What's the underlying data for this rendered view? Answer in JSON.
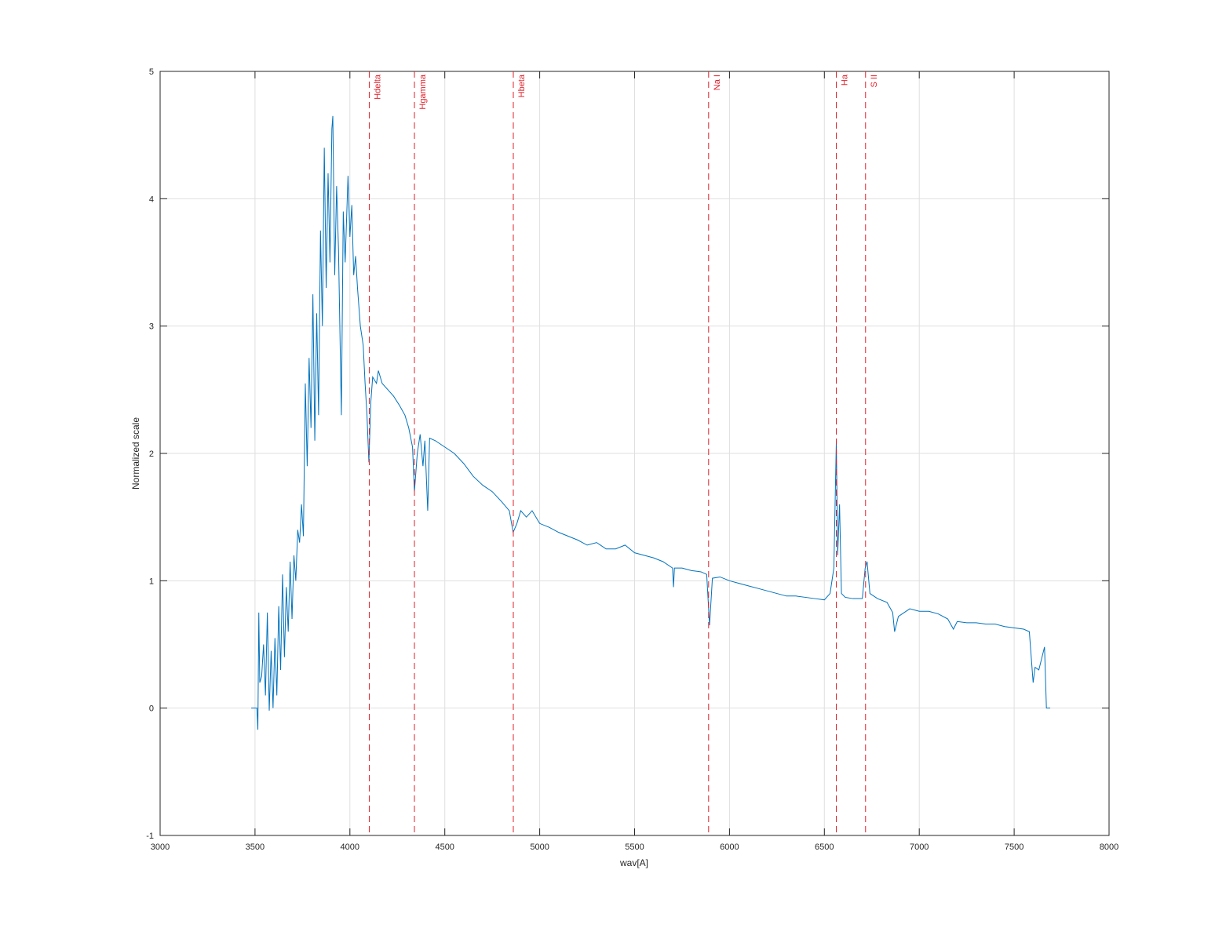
{
  "chart_data": {
    "type": "line",
    "xlabel": "wav[A]",
    "ylabel": "Normalized scale",
    "xlim": [
      3000,
      8000
    ],
    "ylim": [
      -1,
      5
    ],
    "xticks": [
      3000,
      3500,
      4000,
      4500,
      5000,
      5500,
      6000,
      6500,
      7000,
      7500,
      8000
    ],
    "yticks": [
      -1,
      0,
      1,
      2,
      3,
      4,
      5
    ],
    "grid": true,
    "x": [
      3480,
      3510,
      3515,
      3520,
      3525,
      3535,
      3545,
      3555,
      3565,
      3575,
      3585,
      3595,
      3605,
      3615,
      3625,
      3635,
      3645,
      3655,
      3665,
      3675,
      3685,
      3695,
      3705,
      3715,
      3725,
      3735,
      3745,
      3755,
      3765,
      3775,
      3785,
      3795,
      3805,
      3815,
      3825,
      3835,
      3845,
      3855,
      3865,
      3875,
      3885,
      3895,
      3905,
      3910,
      3920,
      3930,
      3940,
      3955,
      3965,
      3975,
      3990,
      4000,
      4010,
      4020,
      4030,
      4040,
      4055,
      4070,
      4080,
      4090,
      4100,
      4110,
      4120,
      4140,
      4150,
      4170,
      4200,
      4230,
      4260,
      4290,
      4310,
      4330,
      4340,
      4355,
      4370,
      4385,
      4395,
      4410,
      4420,
      4450,
      4500,
      4550,
      4600,
      4650,
      4700,
      4750,
      4800,
      4840,
      4860,
      4880,
      4900,
      4930,
      4960,
      5000,
      5050,
      5100,
      5150,
      5200,
      5250,
      5300,
      5350,
      5400,
      5450,
      5500,
      5550,
      5600,
      5650,
      5700,
      5705,
      5710,
      5750,
      5800,
      5850,
      5880,
      5895,
      5910,
      5950,
      6000,
      6050,
      6100,
      6150,
      6200,
      6250,
      6300,
      6350,
      6400,
      6450,
      6500,
      6530,
      6550,
      6563,
      6570,
      6580,
      6590,
      6610,
      6650,
      6700,
      6715,
      6725,
      6740,
      6780,
      6830,
      6860,
      6870,
      6890,
      6950,
      7000,
      7050,
      7100,
      7150,
      7180,
      7200,
      7250,
      7300,
      7350,
      7400,
      7450,
      7500,
      7550,
      7580,
      7600,
      7610,
      7630,
      7660,
      7670,
      7690
    ],
    "series": [
      {
        "color": "#0072bd",
        "values": [
          0,
          0,
          -0.17,
          0.75,
          0.2,
          0.25,
          0.5,
          0.1,
          0.75,
          -0.02,
          0.45,
          0.0,
          0.55,
          0.1,
          0.8,
          0.3,
          1.05,
          0.4,
          0.95,
          0.6,
          1.15,
          0.7,
          1.2,
          1.0,
          1.4,
          1.3,
          1.6,
          1.35,
          2.55,
          1.9,
          2.75,
          2.2,
          3.25,
          2.1,
          3.1,
          2.3,
          3.75,
          3.0,
          4.4,
          3.3,
          4.2,
          3.5,
          4.55,
          4.65,
          3.4,
          4.1,
          3.6,
          2.3,
          3.9,
          3.5,
          4.18,
          3.7,
          3.95,
          3.4,
          3.55,
          3.3,
          3.0,
          2.85,
          2.55,
          2.3,
          1.93,
          2.4,
          2.6,
          2.55,
          2.65,
          2.55,
          2.5,
          2.45,
          2.38,
          2.3,
          2.2,
          2.05,
          1.7,
          2.0,
          2.15,
          1.9,
          2.1,
          1.55,
          2.12,
          2.1,
          2.05,
          2.0,
          1.92,
          1.82,
          1.75,
          1.7,
          1.62,
          1.55,
          1.38,
          1.45,
          1.55,
          1.5,
          1.55,
          1.45,
          1.42,
          1.38,
          1.35,
          1.32,
          1.28,
          1.3,
          1.25,
          1.25,
          1.28,
          1.22,
          1.2,
          1.18,
          1.15,
          1.1,
          0.95,
          1.1,
          1.1,
          1.08,
          1.07,
          1.05,
          0.65,
          1.02,
          1.03,
          1.0,
          0.98,
          0.96,
          0.94,
          0.92,
          0.9,
          0.88,
          0.88,
          0.87,
          0.86,
          0.85,
          0.9,
          1.1,
          2.1,
          1.2,
          1.6,
          0.9,
          0.87,
          0.86,
          0.86,
          1.1,
          1.15,
          0.9,
          0.86,
          0.83,
          0.75,
          0.6,
          0.72,
          0.78,
          0.76,
          0.76,
          0.74,
          0.7,
          0.62,
          0.68,
          0.67,
          0.67,
          0.66,
          0.66,
          0.64,
          0.63,
          0.62,
          0.6,
          0.2,
          0.32,
          0.3,
          0.48,
          0.0,
          0.0
        ]
      }
    ],
    "annotations": [
      {
        "label": "Hdelta",
        "x": 4102,
        "color": "#e0202a"
      },
      {
        "label": "Hgamma",
        "x": 4340,
        "color": "#e0202a"
      },
      {
        "label": "Hbeta",
        "x": 4861,
        "color": "#e0202a"
      },
      {
        "label": "Na I",
        "x": 5890,
        "color": "#e0202a"
      },
      {
        "label": "Ha",
        "x": 6563,
        "color": "#e0202a"
      },
      {
        "label": "S II",
        "x": 6717,
        "color": "#e0202a"
      }
    ]
  }
}
